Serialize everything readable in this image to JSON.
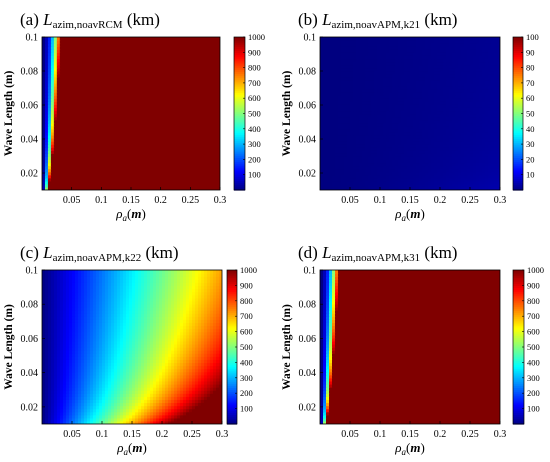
{
  "chart_data": [
    {
      "type": "heatmap",
      "panel_label": "(a)",
      "title_var": "L",
      "title_sub": "azim,noavRCM",
      "title_unit": "(km)",
      "xlabel_var": "ρ",
      "xlabel_sub": "a",
      "xlabel_arg": "m",
      "ylabel": "Wave Length (m)",
      "xlim": [
        0,
        0.3
      ],
      "ylim": [
        0.01,
        0.1
      ],
      "x_ticks": [
        "0.05",
        "0.1",
        "0.15",
        "0.2",
        "0.25",
        "0.3"
      ],
      "y_ticks": [
        "0.02",
        "0.04",
        "0.06",
        "0.08",
        "0.1"
      ],
      "colorbar_range": [
        0,
        1000
      ],
      "colorbar_ticks": [
        "100",
        "200",
        "300",
        "400",
        "500",
        "600",
        "700",
        "800",
        "900",
        "1000"
      ],
      "field": {
        "coefficient": 100000.0,
        "x_exponent": 2,
        "y_exponent": -1
      },
      "colormap": "jet",
      "grid": false
    },
    {
      "type": "heatmap",
      "panel_label": "(b)",
      "title_var": "L",
      "title_sub": "azim,noavAPM,k21",
      "title_unit": "(km)",
      "xlabel_var": "ρ",
      "xlabel_sub": "a",
      "xlabel_arg": "m",
      "ylabel": "Wave Length (m)",
      "xlim": [
        0,
        0.3
      ],
      "ylim": [
        0.01,
        0.1
      ],
      "x_ticks": [
        "0.05",
        "0.1",
        "0.15",
        "0.2",
        "0.25",
        "0.3"
      ],
      "y_ticks": [
        "0.02",
        "0.04",
        "0.06",
        "0.08",
        "0.1"
      ],
      "colorbar_range": [
        0,
        100
      ],
      "colorbar_ticks": [
        "10",
        "20",
        "30",
        "40",
        "50",
        "60",
        "70",
        "80",
        "90",
        "100"
      ],
      "field": {
        "coefficient": 4.0,
        "x_exponent": 1.4,
        "y_exponent": -0.4
      },
      "colormap": "jet",
      "grid": false
    },
    {
      "type": "heatmap",
      "panel_label": "(c)",
      "title_var": "L",
      "title_sub": "azim,noavAPM,k22",
      "title_unit": "(km)",
      "xlabel_var": "ρ",
      "xlabel_sub": "a",
      "xlabel_arg": "m",
      "ylabel": "Wave Length (m)",
      "xlim": [
        0,
        0.3
      ],
      "ylim": [
        0.01,
        0.1
      ],
      "x_ticks": [
        "0.05",
        "0.1",
        "0.15",
        "0.2",
        "0.25",
        "0.3"
      ],
      "y_ticks": [
        "0.02",
        "0.04",
        "0.06",
        "0.08",
        "0.1"
      ],
      "colorbar_range": [
        0,
        1000
      ],
      "colorbar_ticks": [
        "100",
        "200",
        "300",
        "400",
        "500",
        "600",
        "700",
        "800",
        "900",
        "1000"
      ],
      "field": {
        "coefficient": 1200,
        "x_exponent": 1.0,
        "y_exponent": -0.3
      },
      "colormap": "jet",
      "grid": false
    },
    {
      "type": "heatmap",
      "panel_label": "(d)",
      "title_var": "L",
      "title_sub": "azim,noavAPM,k31",
      "title_unit": "(km)",
      "xlabel_var": "ρ",
      "xlabel_sub": "a",
      "xlabel_arg": "m",
      "ylabel": "Wave Length (m)",
      "xlim": [
        0,
        0.3
      ],
      "ylim": [
        0.01,
        0.1
      ],
      "x_ticks": [
        "0.05",
        "0.1",
        "0.15",
        "0.2",
        "0.25",
        "0.3"
      ],
      "y_ticks": [
        "0.02",
        "0.04",
        "0.06",
        "0.08",
        "0.1"
      ],
      "colorbar_range": [
        0,
        1000
      ],
      "colorbar_ticks": [
        "100",
        "200",
        "300",
        "400",
        "500",
        "600",
        "700",
        "800",
        "900",
        "1000"
      ],
      "field": {
        "coefficient": 100000.0,
        "x_exponent": 2,
        "y_exponent": -1
      },
      "colormap": "jet",
      "grid": false
    }
  ]
}
